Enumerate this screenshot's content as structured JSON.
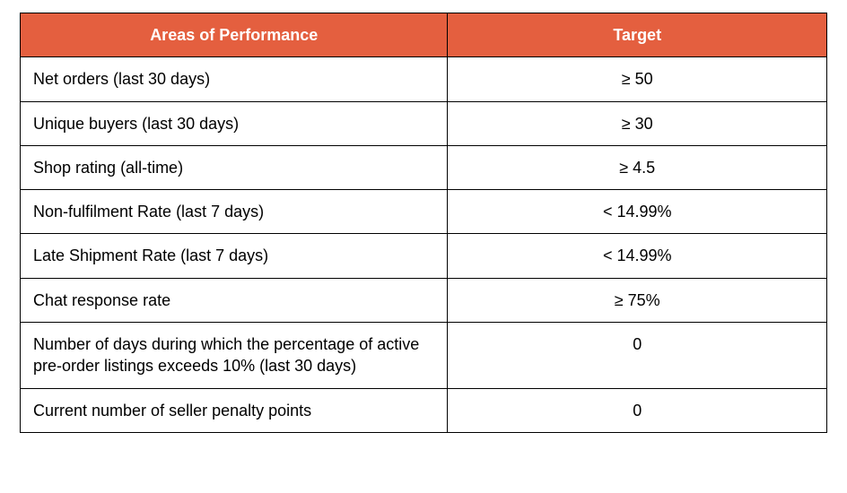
{
  "table": {
    "header_bg": "#e45f3f",
    "header_fg": "#ffffff",
    "border_color": "#000000",
    "columns": [
      "Areas of Performance",
      "Target"
    ],
    "rows": [
      {
        "area": "Net orders (last 30 days)",
        "target": "≥ 50"
      },
      {
        "area": "Unique buyers (last 30 days)",
        "target": "≥ 30"
      },
      {
        "area": "Shop rating (all-time)",
        "target": "≥ 4.5"
      },
      {
        "area": "Non-fulfilment Rate (last 7 days)",
        "target": "< 14.99%"
      },
      {
        "area": "Late Shipment Rate (last 7 days)",
        "target": "< 14.99%"
      },
      {
        "area": "Chat response rate",
        "target": "≥ 75%"
      },
      {
        "area": "Number of days during which the percentage of active pre-order listings exceeds 10% (last 30 days)",
        "target": "0"
      },
      {
        "area": "Current number of seller penalty points",
        "target": "0"
      }
    ]
  }
}
